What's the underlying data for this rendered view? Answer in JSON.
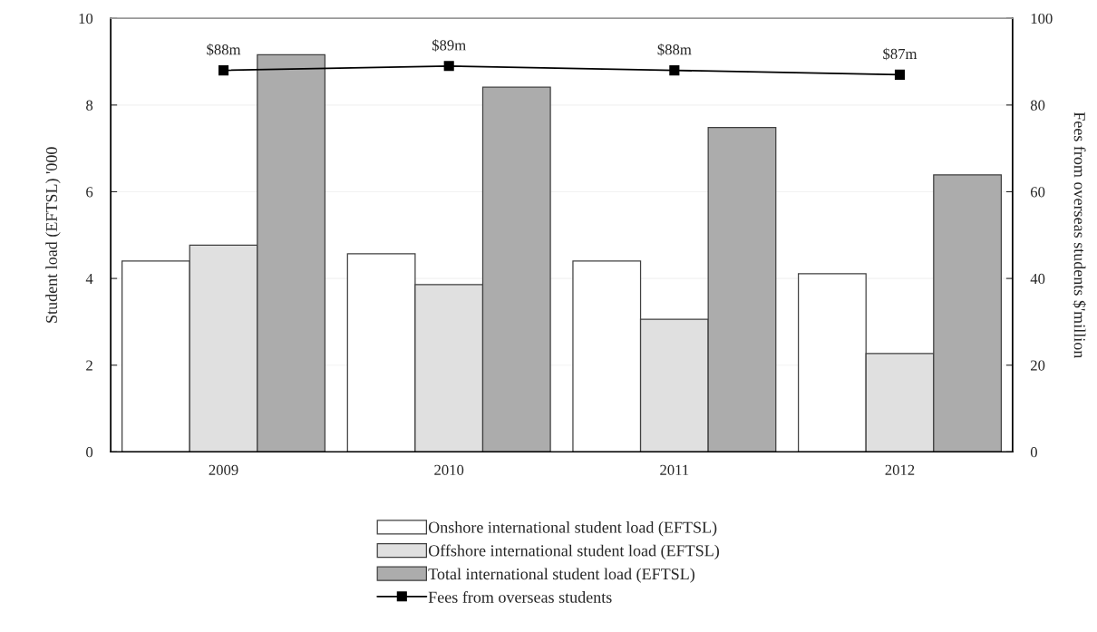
{
  "chart_data": {
    "type": "bar",
    "categories": [
      "2009",
      "2010",
      "2011",
      "2012"
    ],
    "ylabel": "Student load (EFTSL) '000",
    "y2label": "Fees from overseas students $'million",
    "ylim": [
      0,
      10
    ],
    "yticks": [
      0,
      2,
      4,
      6,
      8,
      10
    ],
    "y2lim": [
      0,
      100
    ],
    "y2ticks": [
      0,
      20,
      40,
      60,
      80,
      100
    ],
    "grid": "y",
    "legend": "bottom",
    "marker": "square",
    "line_style": "solid",
    "series": [
      {
        "name": "Onshore international student load (EFTSL)",
        "color": "#ffffff",
        "values": [
          4.4,
          4.57,
          4.4,
          4.11
        ]
      },
      {
        "name": "Offshore international student load (EFTSL)",
        "color": "#e0e0e0",
        "values": [
          4.77,
          3.86,
          3.06,
          2.27
        ]
      },
      {
        "name": "Total international student load (EFTSL)",
        "color": "#acacac",
        "values": [
          9.16,
          8.41,
          7.48,
          6.39
        ]
      },
      {
        "name": "Fees from overseas students",
        "type": "line",
        "axis": "y2",
        "color": "#000000",
        "values": [
          88,
          89,
          88,
          87
        ],
        "value_labels": [
          "$88m",
          "$89m",
          "$88m",
          "$87m"
        ]
      }
    ]
  }
}
